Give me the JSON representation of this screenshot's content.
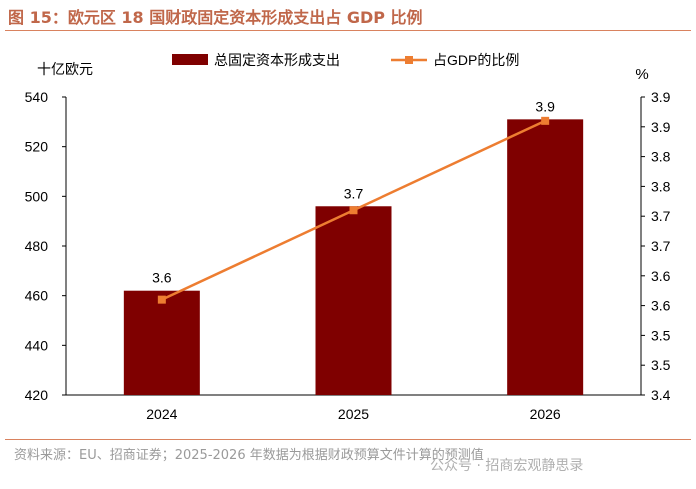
{
  "title": "图 15：欧元区 18 国财政固定资本形成支出占 GDP 比例",
  "source": "资料来源：EU、招商证券；2025-2026 年数据为根据财政预算文件计算的预测值",
  "watermark": "公众号 · 招商宏观静思录",
  "chart_data": {
    "type": "bar+line",
    "categories": [
      "2024",
      "2025",
      "2026"
    ],
    "ylabel_left": "十亿欧元",
    "ylabel_right": "%",
    "ylim_left": [
      420,
      540
    ],
    "yticks_left": [
      "420",
      "440",
      "460",
      "480",
      "500",
      "520",
      "540"
    ],
    "ylim_right": [
      3.4,
      3.9
    ],
    "yticks_right": [
      "3.4",
      "3.5",
      "3.5",
      "3.6",
      "3.6",
      "3.7",
      "3.7",
      "3.8",
      "3.8",
      "3.9",
      "3.9"
    ],
    "series": [
      {
        "name": "总固定资本形成支出",
        "type": "bar",
        "axis": "left",
        "values": [
          462,
          496,
          531
        ],
        "color": "#7f0000"
      },
      {
        "name": "占GDP的比例",
        "type": "line",
        "axis": "right",
        "values": [
          3.56,
          3.71,
          3.86
        ],
        "labels": [
          "3.6",
          "3.7",
          "3.9"
        ],
        "color": "#ed7d31"
      }
    ],
    "grid": false,
    "legend": "top"
  }
}
